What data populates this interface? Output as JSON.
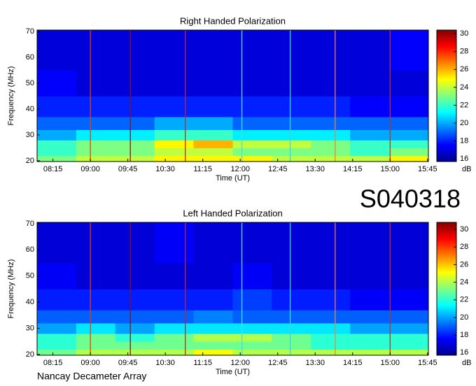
{
  "figure": {
    "label": "S040318",
    "footer": "Nancay Decameter Array"
  },
  "chart_data": [
    {
      "type": "heatmap",
      "title": "Right Handed Polarization",
      "x_label": "Time (UT)",
      "y_label": "Frequency (MHz)",
      "x": [
        476,
        523,
        570,
        617,
        664,
        711,
        758,
        805,
        852,
        899,
        946
      ],
      "y": [
        19.7,
        22,
        25,
        28,
        32,
        37,
        45,
        55,
        70.5
      ],
      "z": [
        [
          23,
          24,
          24,
          25,
          25,
          25,
          24,
          24,
          24,
          25
        ],
        [
          22,
          23,
          23,
          24,
          24,
          23,
          23,
          23,
          22,
          23
        ],
        [
          22,
          23,
          23,
          25,
          26,
          24,
          24,
          23,
          22,
          22
        ],
        [
          20,
          21,
          21,
          22,
          22,
          21,
          21,
          21,
          20,
          20
        ],
        [
          19,
          19,
          19,
          20,
          20,
          19,
          19,
          19,
          19,
          19
        ],
        [
          18,
          18,
          18,
          18,
          18,
          18,
          18,
          18,
          17.5,
          17.5
        ],
        [
          17.5,
          17,
          17,
          17,
          17,
          17,
          17,
          17,
          17,
          17
        ],
        [
          17,
          17,
          17,
          17,
          17,
          17,
          17,
          17,
          17,
          17.5
        ]
      ],
      "xlim": [
        476,
        946
      ],
      "ylim": [
        19.7,
        70.5
      ],
      "xticks": [
        {
          "value": 495,
          "label": "08:15"
        },
        {
          "value": 540,
          "label": "09:00"
        },
        {
          "value": 585,
          "label": "09:45"
        },
        {
          "value": 630,
          "label": "10:30"
        },
        {
          "value": 675,
          "label": "11:15"
        },
        {
          "value": 720,
          "label": "12:00"
        },
        {
          "value": 765,
          "label": "12:45"
        },
        {
          "value": 810,
          "label": "13:30"
        },
        {
          "value": 855,
          "label": "14:15"
        },
        {
          "value": 900,
          "label": "15:00"
        },
        {
          "value": 945,
          "label": "15:45"
        }
      ],
      "yticks": [
        20,
        30,
        40,
        50,
        60,
        70
      ],
      "zlim": [
        15.7,
        30.4
      ],
      "zticks": [
        16,
        18,
        20,
        22,
        24,
        26,
        28,
        30
      ],
      "z_label": "dB",
      "colormap": "jet",
      "vertical_lines": [
        {
          "x": 540,
          "color": "#e04010"
        },
        {
          "x": 588,
          "color": "#901010"
        },
        {
          "x": 654,
          "color": "#d02020"
        },
        {
          "x": 722,
          "color": "#40e0e0"
        },
        {
          "x": 780,
          "color": "#40d0e0"
        },
        {
          "x": 834,
          "color": "#f08040"
        },
        {
          "x": 900,
          "color": "#c03020"
        }
      ]
    },
    {
      "type": "heatmap",
      "title": "Left Handed Polarization",
      "x_label": "Time (UT)",
      "y_label": "Frequency (MHz)",
      "x": [
        476,
        523,
        570,
        617,
        664,
        711,
        758,
        805,
        852,
        899,
        946
      ],
      "y": [
        19.7,
        22,
        25,
        28,
        32,
        37,
        45,
        55,
        70.5
      ],
      "z": [
        [
          23,
          24,
          24,
          24,
          25,
          24,
          24,
          24,
          24,
          24
        ],
        [
          22,
          23,
          23,
          23,
          23,
          23,
          23,
          22,
          22,
          22
        ],
        [
          22,
          23,
          22,
          23,
          24,
          24,
          23,
          22,
          22,
          22
        ],
        [
          20,
          21,
          20,
          21,
          21,
          21,
          21,
          21,
          20,
          20
        ],
        [
          19,
          19,
          19,
          19,
          19.5,
          19,
          19,
          19,
          19,
          19
        ],
        [
          18,
          18,
          18,
          18,
          18,
          18.5,
          18,
          18,
          17.5,
          17.5
        ],
        [
          17.5,
          17,
          17,
          17,
          17,
          17.5,
          17,
          17,
          17,
          17
        ],
        [
          17,
          17,
          17,
          17.5,
          17,
          17,
          17,
          17,
          17,
          17
        ]
      ],
      "xlim": [
        476,
        946
      ],
      "ylim": [
        19.7,
        70.5
      ],
      "xticks": [
        {
          "value": 495,
          "label": "08:15"
        },
        {
          "value": 540,
          "label": "09:00"
        },
        {
          "value": 585,
          "label": "09:45"
        },
        {
          "value": 630,
          "label": "10:30"
        },
        {
          "value": 675,
          "label": "11:15"
        },
        {
          "value": 720,
          "label": "12:00"
        },
        {
          "value": 765,
          "label": "12:45"
        },
        {
          "value": 810,
          "label": "13:30"
        },
        {
          "value": 855,
          "label": "14:15"
        },
        {
          "value": 900,
          "label": "15:00"
        },
        {
          "value": 945,
          "label": "15:45"
        }
      ],
      "yticks": [
        20,
        30,
        40,
        50,
        60,
        70
      ],
      "zlim": [
        15.7,
        30.8
      ],
      "zticks": [
        16,
        18,
        20,
        22,
        24,
        26,
        28,
        30
      ],
      "z_label": "dB",
      "colormap": "jet",
      "vertical_lines": [
        {
          "x": 540,
          "color": "#e04010"
        },
        {
          "x": 588,
          "color": "#901010"
        },
        {
          "x": 654,
          "color": "#d02020"
        },
        {
          "x": 722,
          "color": "#40e0e0"
        },
        {
          "x": 780,
          "color": "#40d0e0"
        },
        {
          "x": 834,
          "color": "#f08040"
        },
        {
          "x": 900,
          "color": "#c03020"
        }
      ]
    }
  ]
}
